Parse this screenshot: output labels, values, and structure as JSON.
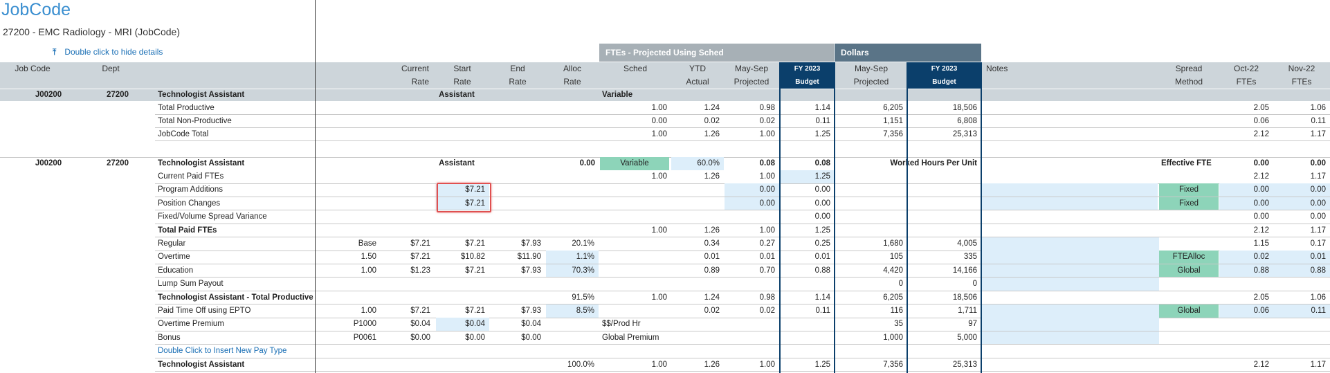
{
  "page": {
    "title": "JobCode",
    "subtitle": "27200 - EMC Radiology - MRI (JobCode)",
    "hide_details": "Double click to hide details",
    "hide_icon": "arrow-up-bar-icon"
  },
  "bands": {
    "ftes": "FTEs - Projected Using Sched",
    "dollars": "Dollars"
  },
  "headers": {
    "job_code": [
      "",
      "Job Code"
    ],
    "dept": [
      "",
      "Dept"
    ],
    "current_rate": [
      "Current",
      "Rate"
    ],
    "start_rate": [
      "Start",
      "Rate"
    ],
    "end_rate": [
      "End",
      "Rate"
    ],
    "alloc_rate": [
      "Alloc",
      "Rate"
    ],
    "sched": [
      "",
      "Sched"
    ],
    "ytd_actual": [
      "YTD",
      "Actual"
    ],
    "may_sep_projected": [
      "May-Sep",
      "Projected"
    ],
    "fy2023_budget": [
      "FY 2023",
      "Budget"
    ],
    "dollars_may_sep": [
      "May-Sep",
      "Projected"
    ],
    "dollars_fy2023": [
      "FY 2023",
      "Budget"
    ],
    "notes": [
      "",
      "Notes"
    ],
    "spread_method": [
      "Spread",
      "Method"
    ],
    "oct22": [
      "Oct-22",
      "FTEs"
    ],
    "nov22": [
      "Nov-22",
      "FTEs"
    ]
  },
  "group1": {
    "job_code": "J00200",
    "dept": "27200",
    "name": "Technologist Assistant",
    "start": "Assistant",
    "sched": "Variable"
  },
  "summary_rows": [
    {
      "label": "Total Productive",
      "sched": "1.00",
      "ytd": "1.24",
      "may": "0.98",
      "fy": "1.14",
      "dmay": "6,205",
      "dfy": "18,506",
      "oct": "2.05",
      "nov": "1.06"
    },
    {
      "label": "Total Non-Productive",
      "sched": "0.00",
      "ytd": "0.02",
      "may": "0.02",
      "fy": "0.11",
      "dmay": "1,151",
      "dfy": "6,808",
      "oct": "0.06",
      "nov": "0.11"
    },
    {
      "label": "JobCode Total",
      "sched": "1.00",
      "ytd": "1.26",
      "may": "1.00",
      "fy": "1.25",
      "dmay": "7,356",
      "dfy": "25,313",
      "oct": "2.12",
      "nov": "1.17"
    }
  ],
  "group2": {
    "job_code": "J00200",
    "dept": "27200",
    "name": "Technologist Assistant",
    "start": "Assistant",
    "alloc": "0.00",
    "sched": "Variable",
    "ytd": "60.0%",
    "may": "0.08",
    "fy": "0.08",
    "dollars_label": "Worked Hours Per Unit",
    "spread": "Effective FTE",
    "oct": "0.00",
    "nov": "0.00"
  },
  "detail_rows": [
    {
      "label": "Current Paid FTEs",
      "sched": "1.00",
      "ytd": "1.26",
      "may": "1.00",
      "fy": "1.25",
      "oct": "2.12",
      "nov": "1.17"
    },
    {
      "label": "Program Additions",
      "start": "$7.21",
      "may": "0.00",
      "fy": "0.00",
      "spread": "Fixed",
      "oct": "0.00",
      "nov": "0.00"
    },
    {
      "label": "Position Changes",
      "start": "$7.21",
      "may": "0.00",
      "fy": "0.00",
      "spread": "Fixed",
      "oct": "0.00",
      "nov": "0.00"
    },
    {
      "label": "Fixed/Volume Spread Variance",
      "fy": "0.00",
      "oct": "0.00",
      "nov": "0.00"
    },
    {
      "label": "Total Paid FTEs",
      "sched": "1.00",
      "ytd": "1.26",
      "may": "1.00",
      "fy": "1.25",
      "oct": "2.12",
      "nov": "1.17"
    },
    {
      "label": "Regular",
      "type": "Base",
      "current": "$7.21",
      "start": "$7.21",
      "end": "$7.93",
      "alloc": "20.1%",
      "ytd": "0.34",
      "may": "0.27",
      "fy": "0.25",
      "dmay": "1,680",
      "dfy": "4,005",
      "oct": "1.15",
      "nov": "0.17"
    },
    {
      "label": "Overtime",
      "type": "1.50",
      "current": "$7.21",
      "start": "$10.82",
      "end": "$11.90",
      "alloc": "1.1%",
      "ytd": "0.01",
      "may": "0.01",
      "fy": "0.01",
      "dmay": "105",
      "dfy": "335",
      "spread": "FTEAlloc",
      "oct": "0.02",
      "nov": "0.01"
    },
    {
      "label": "Education",
      "type": "1.00",
      "current": "$1.23",
      "start": "$7.21",
      "end": "$7.93",
      "alloc": "70.3%",
      "ytd": "0.89",
      "may": "0.70",
      "fy": "0.88",
      "dmay": "4,420",
      "dfy": "14,166",
      "spread": "Global",
      "oct": "0.88",
      "nov": "0.88"
    },
    {
      "label": "Lump Sum Payout",
      "dmay": "0",
      "dfy": "0"
    },
    {
      "label": "Technologist Assistant - Total Productive",
      "alloc": "91.5%",
      "sched": "1.00",
      "ytd": "1.24",
      "may": "0.98",
      "fy": "1.14",
      "dmay": "6,205",
      "dfy": "18,506",
      "oct": "2.05",
      "nov": "1.06"
    },
    {
      "label": "Paid Time Off using EPTO",
      "type": "1.00",
      "current": "$7.21",
      "start": "$7.21",
      "end": "$7.93",
      "alloc": "8.5%",
      "ytd": "0.02",
      "may": "0.02",
      "fy": "0.11",
      "dmay": "116",
      "dfy": "1,711",
      "spread": "Global",
      "oct": "0.06",
      "nov": "0.11"
    },
    {
      "label": "Overtime Premium",
      "type": "P1000",
      "current": "$0.04",
      "start": "$0.04",
      "end": "$0.04",
      "sched_text": "$$/Prod Hr",
      "dmay": "35",
      "dfy": "97"
    },
    {
      "label": "Bonus",
      "type": "P0061",
      "current": "$0.00",
      "start": "$0.00",
      "end": "$0.00",
      "sched_text": "Global Premium",
      "dmay": "1,000",
      "dfy": "5,000"
    },
    {
      "label": "Double Click to Insert New Pay Type"
    },
    {
      "label": "Technologist Assistant",
      "alloc": "100.0%",
      "sched": "1.00",
      "ytd": "1.26",
      "may": "1.00",
      "fy": "1.25",
      "dmay": "7,356",
      "dfy": "25,313",
      "oct": "2.12",
      "nov": "1.17"
    }
  ]
}
